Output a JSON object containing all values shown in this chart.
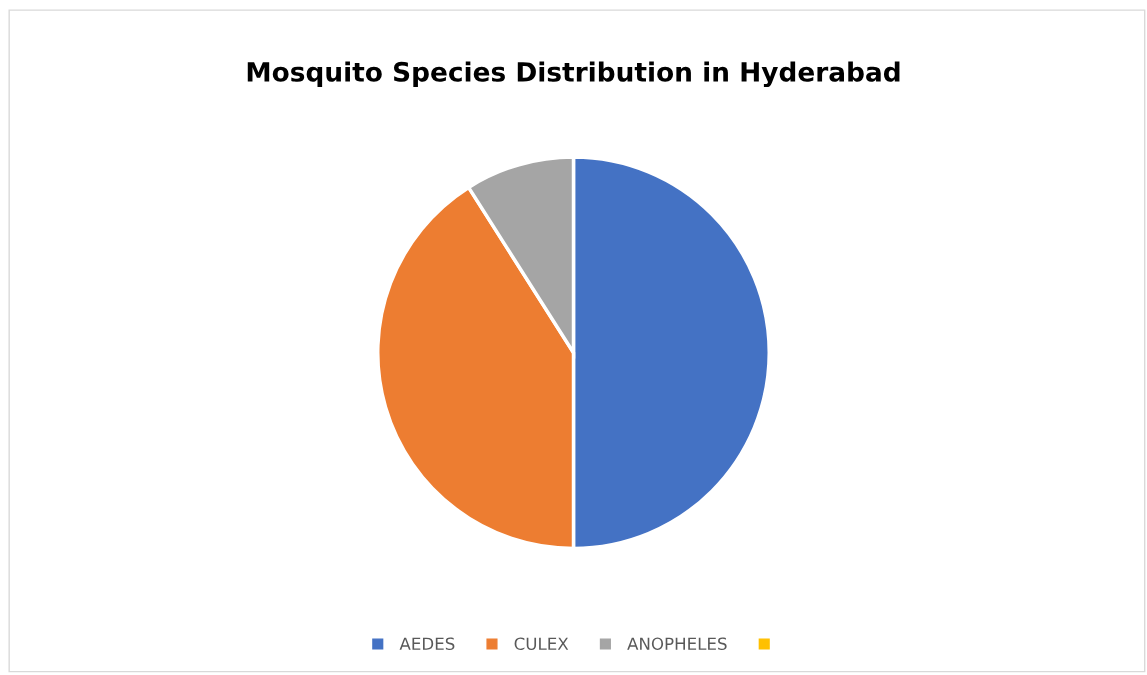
{
  "chart_data": {
    "type": "pie",
    "title": "Mosquito Species Distribution in Hyderabad",
    "categories": [
      "AEDES",
      "CULEX",
      "ANOPHELES",
      null
    ],
    "values": [
      50,
      41,
      9,
      0
    ],
    "colors": [
      "#4472c4",
      "#ed7d31",
      "#a5a5a5",
      "#ffc000"
    ],
    "legend": "bottom"
  }
}
